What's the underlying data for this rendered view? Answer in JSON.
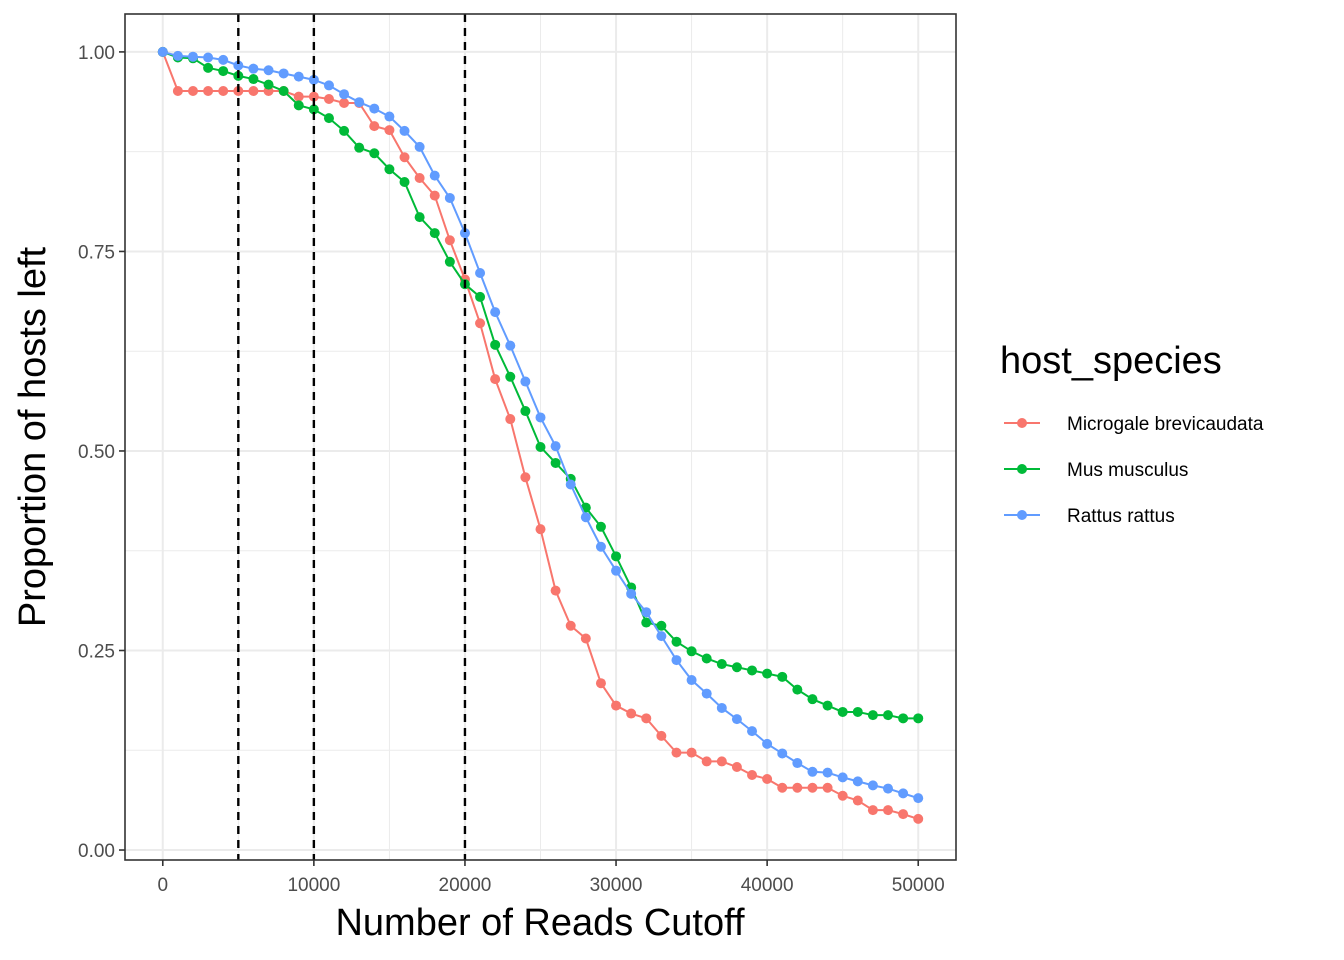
{
  "chart_data": {
    "type": "line",
    "xlabel": "Number of Reads Cutoff",
    "ylabel": "Proportion of hosts left",
    "xlim": [
      -2500,
      52500
    ],
    "ylim": [
      -0.0125,
      1.0475
    ],
    "x_ticks": [
      0,
      10000,
      20000,
      30000,
      40000,
      50000
    ],
    "x_tick_labels": [
      "0",
      "10000",
      "20000",
      "30000",
      "40000",
      "50000"
    ],
    "x_minor_ticks": [
      5000,
      15000,
      25000,
      35000,
      45000
    ],
    "y_ticks": [
      0,
      0.25,
      0.5,
      0.75,
      1.0
    ],
    "y_tick_labels": [
      "0.00",
      "0.25",
      "0.50",
      "0.75",
      "1.00"
    ],
    "y_minor_ticks": [
      0.125,
      0.375,
      0.625,
      0.875
    ],
    "grid": true,
    "vlines": [
      5000,
      10000,
      20000
    ],
    "legend": {
      "title": "host_species",
      "position": "right"
    },
    "x": [
      0,
      1000,
      2000,
      3000,
      4000,
      5000,
      6000,
      7000,
      8000,
      9000,
      10000,
      11000,
      12000,
      13000,
      14000,
      15000,
      16000,
      17000,
      18000,
      19000,
      20000,
      21000,
      22000,
      23000,
      24000,
      25000,
      26000,
      27000,
      28000,
      29000,
      30000,
      31000,
      32000,
      33000,
      34000,
      35000,
      36000,
      37000,
      38000,
      39000,
      40000,
      41000,
      42000,
      43000,
      44000,
      45000,
      46000,
      47000,
      48000,
      49000,
      50000
    ],
    "series": [
      {
        "name": "Microgale brevicaudata",
        "color": "#F8766D",
        "values": [
          1.0,
          0.951,
          0.951,
          0.951,
          0.951,
          0.951,
          0.951,
          0.951,
          0.951,
          0.944,
          0.944,
          0.941,
          0.936,
          0.936,
          0.907,
          0.902,
          0.868,
          0.842,
          0.82,
          0.764,
          0.715,
          0.66,
          0.59,
          0.54,
          0.467,
          0.402,
          0.325,
          0.281,
          0.265,
          0.209,
          0.181,
          0.171,
          0.165,
          0.143,
          0.122,
          0.122,
          0.111,
          0.111,
          0.104,
          0.094,
          0.089,
          0.078,
          0.078,
          0.078,
          0.078,
          0.068,
          0.062,
          0.05,
          0.05,
          0.045,
          0.039
        ]
      },
      {
        "name": "Mus musculus",
        "color": "#00BA38",
        "values": [
          1.0,
          0.993,
          0.992,
          0.98,
          0.976,
          0.97,
          0.966,
          0.959,
          0.951,
          0.933,
          0.928,
          0.917,
          0.901,
          0.88,
          0.873,
          0.853,
          0.837,
          0.793,
          0.773,
          0.737,
          0.709,
          0.693,
          0.633,
          0.593,
          0.55,
          0.505,
          0.485,
          0.465,
          0.429,
          0.405,
          0.368,
          0.329,
          0.285,
          0.281,
          0.261,
          0.249,
          0.24,
          0.233,
          0.229,
          0.225,
          0.221,
          0.217,
          0.201,
          0.189,
          0.181,
          0.173,
          0.173,
          0.169,
          0.169,
          0.165,
          0.165
        ]
      },
      {
        "name": "Rattus rattus",
        "color": "#619CFF",
        "values": [
          1.0,
          0.995,
          0.994,
          0.993,
          0.99,
          0.983,
          0.979,
          0.977,
          0.973,
          0.969,
          0.965,
          0.958,
          0.947,
          0.937,
          0.929,
          0.919,
          0.901,
          0.881,
          0.845,
          0.817,
          0.773,
          0.723,
          0.674,
          0.632,
          0.587,
          0.542,
          0.506,
          0.458,
          0.417,
          0.38,
          0.35,
          0.321,
          0.298,
          0.268,
          0.238,
          0.213,
          0.196,
          0.178,
          0.164,
          0.149,
          0.133,
          0.121,
          0.109,
          0.098,
          0.097,
          0.091,
          0.086,
          0.081,
          0.077,
          0.071,
          0.065
        ]
      }
    ]
  }
}
